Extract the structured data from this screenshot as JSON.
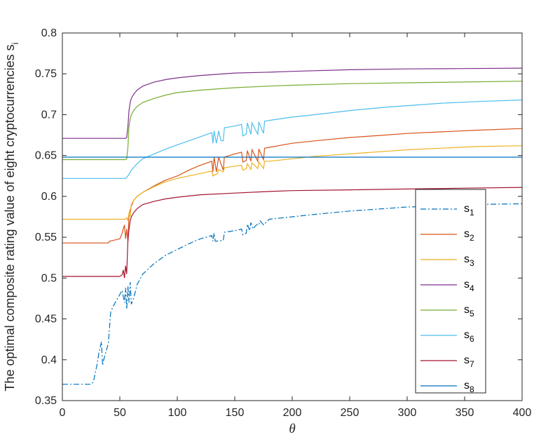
{
  "chart_data": {
    "type": "line",
    "title": "",
    "xlabel": "θ",
    "ylabel": "The optimal composite rating value of eight cryptocurrencies s",
    "ylabel_subscript": "i",
    "xlim": [
      0,
      400
    ],
    "ylim": [
      0.35,
      0.8
    ],
    "xticks": [
      0,
      50,
      100,
      150,
      200,
      250,
      300,
      350,
      400
    ],
    "yticks": [
      0.35,
      0.4,
      0.45,
      0.5,
      0.55,
      0.6,
      0.65,
      0.7,
      0.75,
      0.8
    ],
    "xtick_labels": [
      "0",
      "50",
      "100",
      "150",
      "200",
      "250",
      "300",
      "350",
      "400"
    ],
    "ytick_labels": [
      "0.35",
      "0.4",
      "0.45",
      "0.5",
      "0.55",
      "0.6",
      "0.65",
      "0.7",
      "0.75",
      "0.8"
    ],
    "grid": false,
    "legend_position": "right",
    "series": [
      {
        "name": "s",
        "sub": "1",
        "color": "#0072BD",
        "style": "dashdot",
        "x": [
          0,
          25,
          27,
          30,
          32,
          34,
          35,
          36,
          38,
          40,
          42,
          44,
          48,
          52,
          54,
          55,
          56,
          57,
          58,
          59,
          60,
          62,
          65,
          70,
          80,
          90,
          100,
          110,
          120,
          130,
          131,
          132,
          133,
          140,
          141,
          150,
          156,
          157,
          160,
          161,
          163,
          164,
          166,
          168,
          170,
          171,
          172,
          175,
          180,
          200,
          220,
          250,
          280,
          300,
          330,
          360,
          400
        ],
        "y": [
          0.37,
          0.37,
          0.373,
          0.393,
          0.41,
          0.422,
          0.393,
          0.4,
          0.41,
          0.42,
          0.458,
          0.465,
          0.475,
          0.485,
          0.47,
          0.488,
          0.462,
          0.49,
          0.47,
          0.495,
          0.468,
          0.475,
          0.492,
          0.505,
          0.518,
          0.528,
          0.535,
          0.542,
          0.548,
          0.552,
          0.545,
          0.555,
          0.545,
          0.546,
          0.556,
          0.558,
          0.56,
          0.553,
          0.555,
          0.566,
          0.558,
          0.568,
          0.56,
          0.564,
          0.566,
          0.565,
          0.57,
          0.565,
          0.572,
          0.575,
          0.578,
          0.582,
          0.585,
          0.587,
          0.588,
          0.59,
          0.591
        ]
      },
      {
        "name": "s",
        "sub": "2",
        "color": "#D95319",
        "style": "solid",
        "x": [
          0,
          40,
          41,
          50,
          52,
          53,
          54,
          55,
          56,
          57,
          58,
          60,
          62,
          65,
          70,
          80,
          90,
          100,
          110,
          120,
          130,
          131,
          132,
          134,
          136,
          140,
          141,
          150,
          156,
          157,
          160,
          161,
          164,
          165,
          170,
          171,
          175,
          176,
          180,
          200,
          220,
          250,
          280,
          300,
          330,
          360,
          400
        ],
        "y": [
          0.543,
          0.543,
          0.545,
          0.548,
          0.555,
          0.56,
          0.565,
          0.548,
          0.56,
          0.545,
          0.578,
          0.588,
          0.595,
          0.6,
          0.605,
          0.613,
          0.62,
          0.625,
          0.632,
          0.638,
          0.643,
          0.63,
          0.648,
          0.63,
          0.648,
          0.632,
          0.648,
          0.652,
          0.654,
          0.642,
          0.644,
          0.656,
          0.643,
          0.657,
          0.643,
          0.658,
          0.645,
          0.659,
          0.66,
          0.665,
          0.668,
          0.672,
          0.675,
          0.677,
          0.679,
          0.681,
          0.683
        ]
      },
      {
        "name": "s",
        "sub": "3",
        "color": "#EDB120",
        "style": "solid",
        "x": [
          0,
          55,
          56,
          57,
          58,
          59,
          60,
          62,
          65,
          70,
          80,
          90,
          100,
          110,
          120,
          130,
          131,
          135,
          136,
          140,
          141,
          150,
          156,
          157,
          160,
          161,
          164,
          165,
          170,
          171,
          175,
          176,
          180,
          200,
          220,
          250,
          280,
          300,
          330,
          360,
          400
        ],
        "y": [
          0.572,
          0.572,
          0.574,
          0.57,
          0.58,
          0.575,
          0.59,
          0.595,
          0.6,
          0.605,
          0.612,
          0.618,
          0.622,
          0.625,
          0.628,
          0.631,
          0.625,
          0.628,
          0.633,
          0.63,
          0.635,
          0.637,
          0.638,
          0.632,
          0.634,
          0.64,
          0.633,
          0.641,
          0.634,
          0.642,
          0.634,
          0.643,
          0.643,
          0.646,
          0.649,
          0.652,
          0.655,
          0.657,
          0.659,
          0.661,
          0.662
        ]
      },
      {
        "name": "s",
        "sub": "4",
        "color": "#7E2F8E",
        "style": "solid",
        "x": [
          0,
          55,
          56,
          57,
          58,
          59,
          60,
          62,
          65,
          70,
          80,
          90,
          100,
          120,
          150,
          180,
          200,
          250,
          300,
          350,
          400
        ],
        "y": [
          0.671,
          0.671,
          0.672,
          0.685,
          0.705,
          0.715,
          0.72,
          0.725,
          0.73,
          0.735,
          0.74,
          0.743,
          0.745,
          0.748,
          0.751,
          0.752,
          0.753,
          0.755,
          0.756,
          0.7565,
          0.757
        ]
      },
      {
        "name": "s",
        "sub": "5",
        "color": "#77AC30",
        "style": "solid",
        "x": [
          0,
          55,
          56,
          57,
          58,
          59,
          60,
          62,
          65,
          70,
          80,
          90,
          100,
          120,
          150,
          180,
          200,
          250,
          300,
          350,
          400
        ],
        "y": [
          0.645,
          0.645,
          0.646,
          0.66,
          0.685,
          0.695,
          0.7,
          0.705,
          0.71,
          0.715,
          0.72,
          0.724,
          0.727,
          0.73,
          0.733,
          0.735,
          0.736,
          0.738,
          0.739,
          0.74,
          0.741
        ]
      },
      {
        "name": "s",
        "sub": "6",
        "color": "#4DBEEE",
        "style": "solid",
        "x": [
          0,
          55,
          57,
          60,
          65,
          70,
          80,
          90,
          100,
          110,
          120,
          130,
          131,
          132,
          134,
          136,
          138,
          140,
          141,
          150,
          156,
          157,
          160,
          161,
          164,
          165,
          170,
          171,
          175,
          176,
          180,
          200,
          220,
          250,
          280,
          300,
          330,
          360,
          400
        ],
        "y": [
          0.622,
          0.622,
          0.625,
          0.632,
          0.64,
          0.646,
          0.652,
          0.658,
          0.663,
          0.668,
          0.673,
          0.678,
          0.665,
          0.68,
          0.665,
          0.68,
          0.668,
          0.668,
          0.684,
          0.686,
          0.688,
          0.674,
          0.676,
          0.69,
          0.676,
          0.69,
          0.676,
          0.691,
          0.677,
          0.692,
          0.693,
          0.697,
          0.7,
          0.705,
          0.709,
          0.711,
          0.714,
          0.716,
          0.718
        ]
      },
      {
        "name": "s",
        "sub": "7",
        "color": "#A2142F",
        "style": "solid",
        "x": [
          0,
          50,
          52,
          53,
          54,
          55,
          56,
          57,
          58,
          59,
          60,
          62,
          65,
          70,
          80,
          90,
          100,
          120,
          150,
          180,
          200,
          250,
          300,
          350,
          400
        ],
        "y": [
          0.502,
          0.502,
          0.504,
          0.51,
          0.5,
          0.515,
          0.505,
          0.545,
          0.56,
          0.57,
          0.575,
          0.58,
          0.585,
          0.59,
          0.594,
          0.597,
          0.599,
          0.602,
          0.604,
          0.606,
          0.607,
          0.608,
          0.609,
          0.61,
          0.611
        ]
      },
      {
        "name": "s",
        "sub": "8",
        "color": "#0072BD",
        "style": "solid",
        "x": [
          0,
          400
        ],
        "y": [
          0.648,
          0.648
        ]
      }
    ]
  }
}
